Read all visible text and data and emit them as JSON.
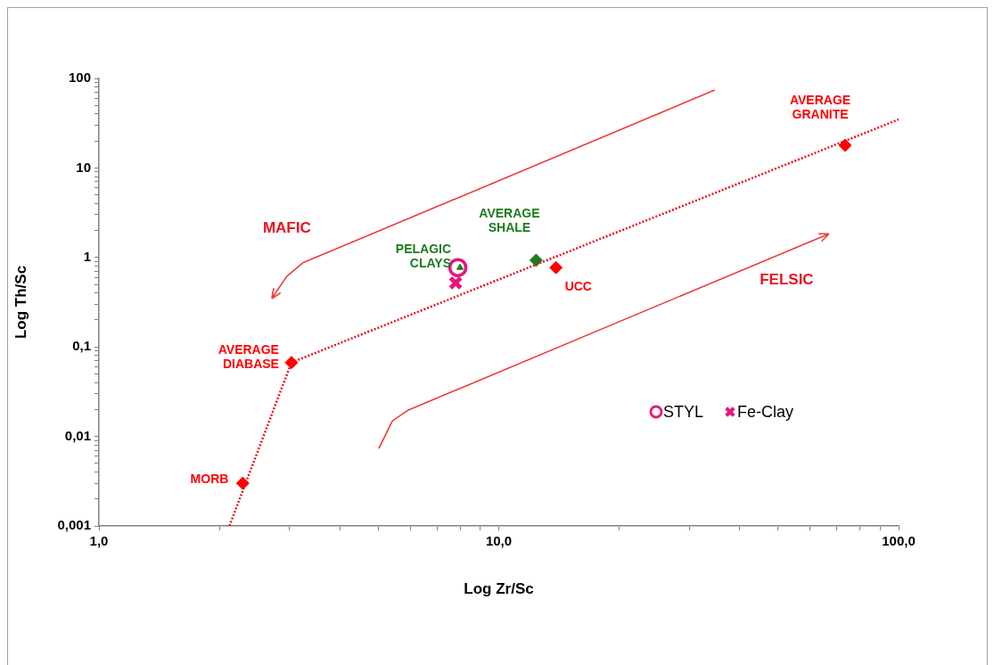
{
  "chart_data": {
    "type": "scatter",
    "xlabel": "Log Zr/Sc",
    "ylabel": "Log Th/Sc",
    "log": "xy",
    "grid": false,
    "legend": "bottom right",
    "xlim": [
      1,
      100
    ],
    "ylim": [
      0.001,
      100
    ],
    "xticks": [
      {
        "value": 1,
        "label": "1,0"
      },
      {
        "value": 2,
        "label": null
      },
      {
        "value": 3,
        "label": null
      },
      {
        "value": 4,
        "label": null
      },
      {
        "value": 5,
        "label": null
      },
      {
        "value": 6,
        "label": null
      },
      {
        "value": 7,
        "label": null
      },
      {
        "value": 8,
        "label": null
      },
      {
        "value": 9,
        "label": null
      },
      {
        "value": 10,
        "label": "10,0"
      },
      {
        "value": 20,
        "label": null
      },
      {
        "value": 30,
        "label": null
      },
      {
        "value": 40,
        "label": null
      },
      {
        "value": 50,
        "label": null
      },
      {
        "value": 60,
        "label": null
      },
      {
        "value": 70,
        "label": null
      },
      {
        "value": 80,
        "label": null
      },
      {
        "value": 90,
        "label": null
      },
      {
        "value": 100,
        "label": "100,0"
      }
    ],
    "yticks": [
      {
        "value": 0.001,
        "label": "0,001"
      },
      {
        "value": 0.002,
        "label": null
      },
      {
        "value": 0.003,
        "label": null
      },
      {
        "value": 0.004,
        "label": null
      },
      {
        "value": 0.005,
        "label": null
      },
      {
        "value": 0.006,
        "label": null
      },
      {
        "value": 0.007,
        "label": null
      },
      {
        "value": 0.008,
        "label": null
      },
      {
        "value": 0.009,
        "label": null
      },
      {
        "value": 0.01,
        "label": "0,01"
      },
      {
        "value": 0.02,
        "label": null
      },
      {
        "value": 0.03,
        "label": null
      },
      {
        "value": 0.04,
        "label": null
      },
      {
        "value": 0.05,
        "label": null
      },
      {
        "value": 0.06,
        "label": null
      },
      {
        "value": 0.07,
        "label": null
      },
      {
        "value": 0.08,
        "label": null
      },
      {
        "value": 0.09,
        "label": null
      },
      {
        "value": 0.1,
        "label": "0,1"
      },
      {
        "value": 0.2,
        "label": null
      },
      {
        "value": 0.3,
        "label": null
      },
      {
        "value": 0.4,
        "label": null
      },
      {
        "value": 0.5,
        "label": null
      },
      {
        "value": 0.6,
        "label": null
      },
      {
        "value": 0.7,
        "label": null
      },
      {
        "value": 0.8,
        "label": null
      },
      {
        "value": 0.9,
        "label": null
      },
      {
        "value": 1,
        "label": "1"
      },
      {
        "value": 2,
        "label": null
      },
      {
        "value": 3,
        "label": null
      },
      {
        "value": 4,
        "label": null
      },
      {
        "value": 5,
        "label": null
      },
      {
        "value": 6,
        "label": null
      },
      {
        "value": 7,
        "label": null
      },
      {
        "value": 8,
        "label": null
      },
      {
        "value": 9,
        "label": null
      },
      {
        "value": 10,
        "label": "10"
      },
      {
        "value": 20,
        "label": null
      },
      {
        "value": 30,
        "label": null
      },
      {
        "value": 40,
        "label": null
      },
      {
        "value": 50,
        "label": null
      },
      {
        "value": 60,
        "label": null
      },
      {
        "value": 70,
        "label": null
      },
      {
        "value": 80,
        "label": null
      },
      {
        "value": 90,
        "label": null
      },
      {
        "value": 100,
        "label": "100"
      }
    ],
    "series": [
      {
        "type": "line",
        "color": "#e8141e",
        "line_style": "dotted",
        "marker": "none",
        "x": [
          2.12,
          3.03,
          100
        ],
        "values": [
          0.001,
          0.067,
          34.8
        ]
      },
      {
        "color": "#ff0000",
        "marker": "diamond",
        "x": [
          2.29,
          3.03,
          13.9,
          73.5
        ],
        "values": [
          0.003,
          0.067,
          0.77,
          17.9
        ]
      },
      {
        "color": "#1e7b1e",
        "marker": "diamond",
        "x": [
          12.4
        ],
        "values": [
          0.93
        ]
      },
      {
        "name": "STYL",
        "color": "#e8157a",
        "marker": "circle",
        "x": [
          7.9
        ],
        "values": [
          0.77
        ]
      },
      {
        "name": "Fe-Clay",
        "color": "#e8157a",
        "marker": "cross",
        "x": [
          7.8
        ],
        "values": [
          0.52
        ]
      },
      {
        "color": "#1e7b1e",
        "marker": "triangle",
        "x": [
          8.0
        ],
        "values": [
          0.77
        ]
      }
    ],
    "annotations": [
      {
        "text": "MORB",
        "x": 2.29,
        "y": 0.003
      },
      {
        "text": "AVERAGE\nDIABASE",
        "x": 3.03,
        "y": 0.067
      },
      {
        "text": "PELAGIC\nCLAYS",
        "x": 8.0,
        "y": 0.77
      },
      {
        "text": "AVERAGE\nSHALE",
        "x": 12.4,
        "y": 0.93
      },
      {
        "text": "UCC",
        "x": 13.9,
        "y": 0.77
      },
      {
        "text": "AVERAGE\nGRANITE",
        "x": 73.5,
        "y": 17.9
      },
      "MAFIC",
      "FELSIC"
    ]
  }
}
